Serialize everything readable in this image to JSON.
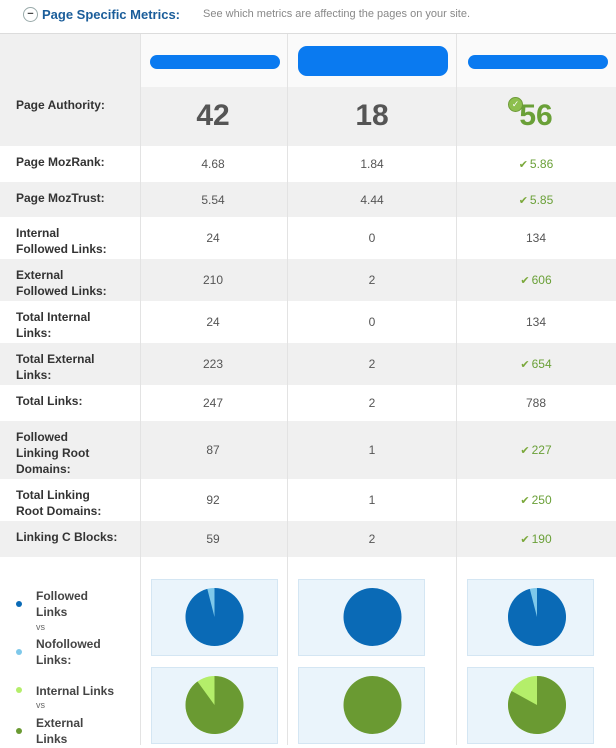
{
  "header": {
    "toggle": "−",
    "title": "Page Specific Metrics:",
    "subtitle": "See which metrics are affecting the pages on your site."
  },
  "columns": [
    "",
    "",
    ""
  ],
  "metrics": [
    {
      "label": "Page Authority:",
      "values": [
        "42",
        "18",
        "56"
      ],
      "winner": 2
    },
    {
      "label": "Page MozRank:",
      "values": [
        "4.68",
        "1.84",
        "5.86"
      ],
      "winner": 2
    },
    {
      "label": "Page MozTrust:",
      "values": [
        "5.54",
        "4.44",
        "5.85"
      ],
      "winner": 2
    },
    {
      "label": "Internal\nFollowed Links:",
      "values": [
        "24",
        "0",
        "134"
      ],
      "winner": null
    },
    {
      "label": "External\nFollowed Links:",
      "values": [
        "210",
        "2",
        "606"
      ],
      "winner": 2
    },
    {
      "label": "Total Internal\nLinks:",
      "values": [
        "24",
        "0",
        "134"
      ],
      "winner": null
    },
    {
      "label": "Total External\nLinks:",
      "values": [
        "223",
        "2",
        "654"
      ],
      "winner": 2
    },
    {
      "label": "Total Links:",
      "values": [
        "247",
        "2",
        "788"
      ],
      "winner": null
    },
    {
      "label": "Followed\nLinking Root\nDomains:",
      "values": [
        "87",
        "1",
        "227"
      ],
      "winner": 2
    },
    {
      "label": "Total Linking\nRoot Domains:",
      "values": [
        "92",
        "1",
        "250"
      ],
      "winner": 2
    },
    {
      "label": "Linking C Blocks:",
      "values": [
        "59",
        "2",
        "190"
      ],
      "winner": 2
    }
  ],
  "legends": [
    {
      "first": "Followed\nLinks",
      "second": "Nofollowed\nLinks:",
      "vs": "vs",
      "colors": [
        "#0a6ab6",
        "#7ec8ea"
      ]
    },
    {
      "first": "Internal Links",
      "second": "External\nLinks",
      "vs": "vs",
      "colors": [
        "#b4ee6a",
        "#6a9a32"
      ]
    }
  ],
  "pies": {
    "followed_fraction": [
      0.96,
      1.0,
      0.96
    ],
    "followed_colors": {
      "main": "#0a6ab6",
      "minor": "#7ec8ea"
    },
    "internal_fraction": [
      0.1,
      0.0,
      0.17
    ],
    "internal_colors": {
      "main": "#6a9a32",
      "minor": "#b4ee6a"
    }
  }
}
